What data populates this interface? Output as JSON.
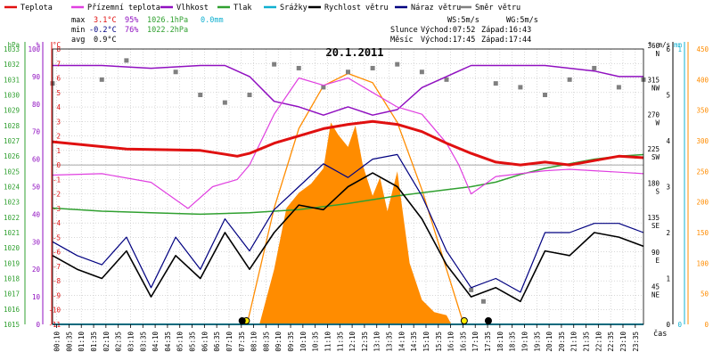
{
  "legend": [
    {
      "label": "Teplota",
      "color": "#e01010"
    },
    {
      "label": "Přízemní teplota",
      "color": "#e040e0"
    },
    {
      "label": "Vlhkost",
      "color": "#9010c0"
    },
    {
      "label": "Tlak",
      "color": "#30a030"
    },
    {
      "label": "Srážky",
      "color": "#10b0d0"
    },
    {
      "label": "Rychlost větru",
      "color": "#000000"
    },
    {
      "label": "Náraz větru",
      "color": "#000080"
    },
    {
      "label": "Směr větru",
      "color": "#808080"
    }
  ],
  "stats": {
    "max_label": "max",
    "max_temp": "3.1°C",
    "max_hum": "95%",
    "max_press": "1026.1hPa",
    "precip": "0.0mm",
    "min_label": "min",
    "min_temp": "-0.2°C",
    "min_hum": "76%",
    "min_press": "1022.2hPa",
    "avg_label": "avg",
    "avg_temp": "0.9°C"
  },
  "wind_info": {
    "ws": "WS:5m/s",
    "wg": "WG:5m/s"
  },
  "sun_info": {
    "label": "Slunce",
    "rise": "Východ:07:52",
    "set": "Západ:16:43"
  },
  "moon_info": {
    "label": "Měsíc",
    "rise": "Východ:17:45",
    "set": "Západ:17:44"
  },
  "colors": {
    "temp": "#e01010",
    "ground": "#e040e0",
    "hum": "#9010c0",
    "press": "#30a030",
    "precip": "#10b0d0",
    "speed": "#000000",
    "gust": "#000080",
    "dir": "#808080",
    "solar": "#ff8c00",
    "grid": "#c0c0c0"
  },
  "chart_data": {
    "type": "line",
    "title": "20.1.2011",
    "xlabel": "čas",
    "x_ticks": [
      "00:10",
      "00:35",
      "01:10",
      "01:35",
      "02:10",
      "02:35",
      "03:10",
      "03:35",
      "04:10",
      "04:35",
      "05:10",
      "05:35",
      "06:10",
      "06:35",
      "07:10",
      "07:35",
      "08:10",
      "08:35",
      "09:10",
      "09:35",
      "10:10",
      "10:35",
      "11:10",
      "11:35",
      "12:10",
      "12:35",
      "13:10",
      "13:35",
      "14:10",
      "14:35",
      "15:10",
      "15:35",
      "16:10",
      "16:35",
      "17:10",
      "17:35",
      "18:10",
      "18:35",
      "19:10",
      "19:35",
      "20:10",
      "20:35",
      "21:10",
      "21:35",
      "22:10",
      "22:35",
      "23:10",
      "23:35"
    ],
    "axes": {
      "pressure": {
        "label": "hPa",
        "ticks": [
          "1033",
          "1032",
          "1031",
          "1030",
          "1029",
          "1028",
          "1027",
          "1026",
          "1025",
          "1024",
          "1023",
          "1022",
          "1021",
          "1020",
          "1019",
          "1018",
          "1017",
          "1016",
          "1015"
        ],
        "range": [
          1015,
          1033
        ]
      },
      "humidity": {
        "label": "%",
        "ticks": [
          "100",
          "90",
          "80",
          "70",
          "60",
          "50",
          "40",
          "30",
          "20",
          "10",
          "0"
        ],
        "range": [
          0,
          100
        ]
      },
      "temperature": {
        "label": "°C",
        "ticks": [
          "8",
          "7",
          "6",
          "5",
          "4",
          "3",
          "2",
          "1",
          "0",
          "-1",
          "-2",
          "-3",
          "-4",
          "-5",
          "-6",
          "-7",
          "-8",
          "-9",
          "-10",
          "-11"
        ],
        "range": [
          -11,
          8
        ]
      },
      "wind_dir": {
        "label": "°",
        "ticks": [
          "360",
          "315",
          "270",
          "225",
          "180",
          "135",
          "90",
          "45"
        ],
        "tick_dirs": [
          "N",
          "NW",
          "W",
          "SW",
          "S",
          "SE",
          "E",
          "NE"
        ],
        "range": [
          0,
          360
        ]
      },
      "wind_speed": {
        "label": "m/s",
        "ticks": [
          "6",
          "5",
          "4",
          "3",
          "2",
          "1",
          "0"
        ],
        "range": [
          0,
          6
        ]
      },
      "precip": {
        "label": "mm",
        "ticks": [
          "1",
          "0"
        ],
        "range": [
          0,
          1
        ]
      },
      "solar": {
        "label": "",
        "ticks": [
          "450",
          "400",
          "350",
          "300",
          "250",
          "200",
          "150",
          "100",
          "50",
          "0"
        ],
        "range": [
          0,
          450
        ]
      }
    },
    "series": [
      {
        "name": "Teplota",
        "axis": "temperature",
        "x": [
          0,
          3,
          6,
          7.5,
          8,
          9,
          10,
          11,
          12,
          13,
          14,
          15,
          16,
          17,
          18,
          19,
          20,
          21,
          22,
          23,
          24
        ],
        "values": [
          1.6,
          1.1,
          1.0,
          0.6,
          0.8,
          1.5,
          2.0,
          2.5,
          2.8,
          3.0,
          2.8,
          2.3,
          1.5,
          0.8,
          0.2,
          0.0,
          0.2,
          0.0,
          0.3,
          0.6,
          0.5
        ]
      },
      {
        "name": "Přízemní teplota",
        "axis": "temperature",
        "x": [
          0,
          2,
          4,
          5.5,
          6.5,
          7.5,
          8,
          9,
          10,
          11,
          12,
          13,
          14,
          15,
          16,
          16.5,
          17,
          18,
          19,
          20,
          21,
          22,
          23,
          24
        ],
        "values": [
          -0.7,
          -0.6,
          -1.2,
          -3.0,
          -1.5,
          -1.0,
          0.0,
          3.5,
          6.0,
          5.5,
          6.0,
          5.0,
          4.0,
          3.5,
          1.5,
          0.0,
          -2.0,
          -0.8,
          -0.6,
          -0.4,
          -0.3,
          -0.4,
          -0.5,
          -0.6
        ]
      },
      {
        "name": "Vlhkost",
        "axis": "humidity",
        "x": [
          0,
          2,
          4,
          6,
          7,
          8,
          9,
          10,
          11,
          12,
          13,
          14,
          15,
          16,
          17,
          18,
          19,
          20,
          21,
          22,
          23,
          24
        ],
        "values": [
          94,
          94,
          93,
          94,
          94,
          90,
          81,
          79,
          76,
          79,
          76,
          78,
          86,
          90,
          94,
          94,
          94,
          94,
          93,
          92,
          90,
          90
        ]
      },
      {
        "name": "Tlak",
        "axis": "pressure",
        "x": [
          0,
          2,
          4,
          6,
          8,
          10,
          12,
          14,
          16,
          17,
          18,
          19,
          20,
          21,
          22,
          23,
          24
        ],
        "values": [
          1022.6,
          1022.4,
          1022.3,
          1022.2,
          1022.3,
          1022.5,
          1022.9,
          1023.4,
          1023.8,
          1024.0,
          1024.3,
          1024.8,
          1025.2,
          1025.5,
          1025.8,
          1026.0,
          1026.1
        ]
      },
      {
        "name": "Srážky",
        "axis": "precip",
        "x": [
          0,
          24
        ],
        "values": [
          0,
          0
        ]
      },
      {
        "name": "Rychlost větru",
        "axis": "wind_speed",
        "x": [
          0,
          1,
          2,
          3,
          4,
          5,
          6,
          7,
          8,
          9,
          10,
          11,
          12,
          13,
          14,
          15,
          16,
          17,
          18,
          19,
          20,
          21,
          22,
          23,
          24
        ],
        "values": [
          1.5,
          1.2,
          1.0,
          1.6,
          0.6,
          1.5,
          1.0,
          2.0,
          1.2,
          2.0,
          2.6,
          2.5,
          3.0,
          3.3,
          3.0,
          2.3,
          1.3,
          0.6,
          0.8,
          0.5,
          1.6,
          1.5,
          2.0,
          1.9,
          1.7
        ]
      },
      {
        "name": "Náraz větru",
        "axis": "wind_speed",
        "x": [
          0,
          1,
          2,
          3,
          4,
          5,
          6,
          7,
          8,
          9,
          10,
          11,
          12,
          13,
          14,
          15,
          16,
          17,
          18,
          19,
          20,
          21,
          22,
          23,
          24
        ],
        "values": [
          1.8,
          1.5,
          1.3,
          1.9,
          0.8,
          1.9,
          1.2,
          2.3,
          1.6,
          2.5,
          3.0,
          3.5,
          3.2,
          3.6,
          3.7,
          2.8,
          1.6,
          0.8,
          1.0,
          0.7,
          2.0,
          2.0,
          2.2,
          2.2,
          2.0
        ]
      },
      {
        "name": "Směr větru",
        "axis": "wind_dir",
        "x": [
          0,
          2,
          3,
          5,
          6,
          7,
          8,
          9,
          10,
          11,
          12,
          13,
          14,
          15,
          16,
          17,
          17.5,
          18,
          19,
          20,
          21,
          22,
          23,
          24
        ],
        "values": [
          315,
          320,
          345,
          330,
          300,
          290,
          300,
          340,
          335,
          310,
          330,
          335,
          340,
          330,
          320,
          45,
          30,
          315,
          310,
          300,
          320,
          335,
          310,
          320
        ]
      },
      {
        "name": "Solar",
        "axis": "solar",
        "x": [
          8.4,
          9,
          9.5,
          10,
          10.5,
          11,
          11.3,
          11.6,
          12,
          12.3,
          12.6,
          13,
          13.3,
          13.6,
          14,
          14.5,
          15,
          15.5,
          16,
          16.2
        ],
        "values": [
          0,
          90,
          190,
          215,
          230,
          255,
          330,
          310,
          290,
          325,
          260,
          210,
          240,
          185,
          250,
          100,
          40,
          20,
          15,
          0
        ]
      },
      {
        "name": "Solar max",
        "axis": "solar",
        "x": [
          7.9,
          9,
          10,
          11,
          12,
          13,
          14,
          15,
          16,
          16.7
        ],
        "values": [
          0,
          190,
          320,
          390,
          410,
          395,
          330,
          220,
          90,
          0
        ]
      }
    ]
  }
}
